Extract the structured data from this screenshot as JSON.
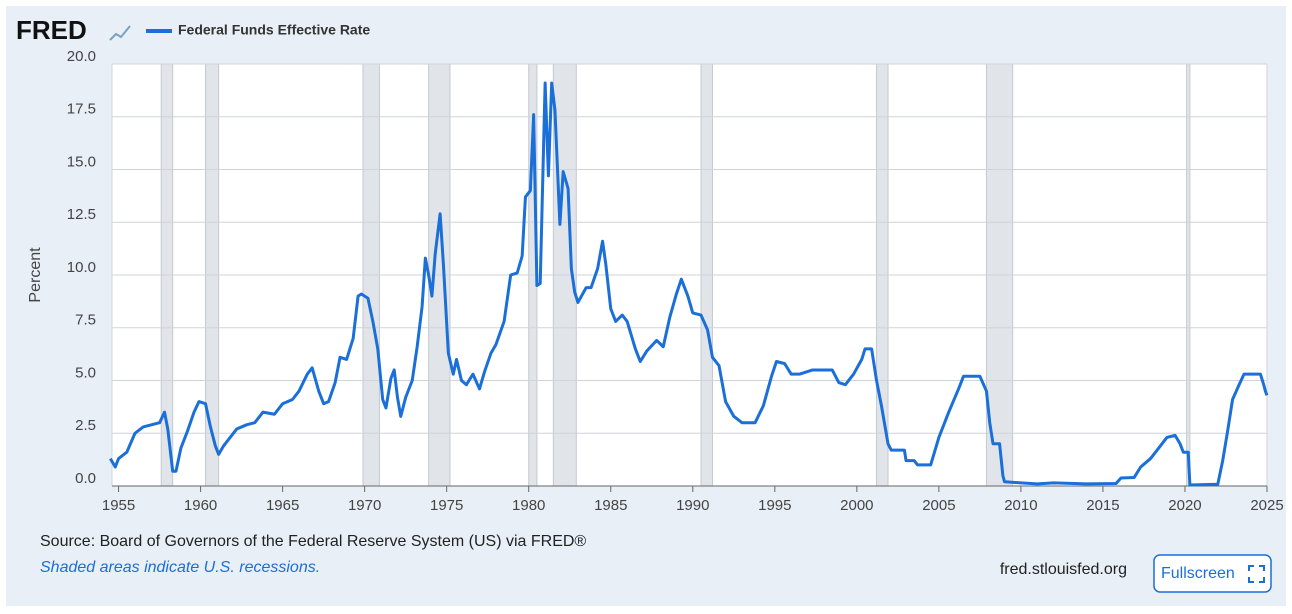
{
  "logo": "FRED",
  "chart_data": {
    "type": "line",
    "y_label": "Percent",
    "x": [
      1954.5,
      1954.8,
      1955.0,
      1955.5,
      1956.0,
      1956.5,
      1957.0,
      1957.5,
      1957.8,
      1958.0,
      1958.3,
      1958.5,
      1958.8,
      1959.2,
      1959.6,
      1959.9,
      1960.3,
      1960.6,
      1960.9,
      1961.1,
      1961.4,
      1961.8,
      1962.2,
      1962.8,
      1963.3,
      1963.8,
      1964.5,
      1965.0,
      1965.6,
      1966.0,
      1966.5,
      1966.8,
      1967.2,
      1967.5,
      1967.8,
      1968.2,
      1968.5,
      1968.9,
      1969.3,
      1969.6,
      1969.8,
      1970.2,
      1970.5,
      1970.8,
      1971.1,
      1971.3,
      1971.6,
      1971.8,
      1972.0,
      1972.2,
      1972.5,
      1972.9,
      1973.2,
      1973.5,
      1973.7,
      1973.9,
      1974.1,
      1974.3,
      1974.6,
      1974.8,
      1975.1,
      1975.4,
      1975.6,
      1975.9,
      1976.2,
      1976.6,
      1977.0,
      1977.3,
      1977.7,
      1978.0,
      1978.5,
      1978.9,
      1979.3,
      1979.6,
      1979.8,
      1980.1,
      1980.3,
      1980.5,
      1980.7,
      1980.9,
      1981.0,
      1981.2,
      1981.4,
      1981.6,
      1981.9,
      1982.1,
      1982.4,
      1982.6,
      1982.8,
      1983.0,
      1983.5,
      1983.8,
      1984.2,
      1984.5,
      1984.7,
      1985.0,
      1985.3,
      1985.7,
      1986.0,
      1986.5,
      1986.8,
      1987.2,
      1987.8,
      1988.2,
      1988.6,
      1989.0,
      1989.3,
      1989.7,
      1990.0,
      1990.5,
      1990.9,
      1991.2,
      1991.6,
      1992.0,
      1992.5,
      1993.0,
      1993.8,
      1994.3,
      1994.8,
      1995.1,
      1995.6,
      1996.0,
      1996.5,
      1997.3,
      1998.5,
      1998.9,
      1999.3,
      1999.8,
      2000.3,
      2000.5,
      2000.9,
      2001.2,
      2001.5,
      2001.9,
      2002.1,
      2002.9,
      2003.0,
      2003.5,
      2003.7,
      2004.5,
      2005.0,
      2005.6,
      2006.2,
      2006.5,
      2007.5,
      2007.9,
      2008.1,
      2008.3,
      2008.7,
      2008.9,
      2009.0,
      2010.0,
      2011.0,
      2012.0,
      2014.0,
      2015.8,
      2016.1,
      2016.9,
      2017.3,
      2017.9,
      2018.4,
      2018.9,
      2019.4,
      2019.7,
      2019.9,
      2020.2,
      2020.3,
      2022.0,
      2022.3,
      2022.6,
      2022.9,
      2023.3,
      2023.6,
      2024.6,
      2024.8,
      2024.9,
      2025.0
    ],
    "series": [
      {
        "name": "Federal Funds Effective Rate",
        "color": "#1a6fd8",
        "values": [
          1.3,
          0.9,
          1.3,
          1.6,
          2.5,
          2.8,
          2.9,
          3.0,
          3.5,
          2.7,
          0.7,
          0.7,
          1.8,
          2.6,
          3.5,
          4.0,
          3.9,
          2.8,
          1.9,
          1.5,
          1.9,
          2.3,
          2.7,
          2.9,
          3.0,
          3.5,
          3.4,
          3.9,
          4.1,
          4.5,
          5.3,
          5.6,
          4.5,
          3.9,
          4.0,
          4.9,
          6.1,
          6.0,
          7.0,
          9.0,
          9.1,
          8.9,
          7.8,
          6.5,
          4.1,
          3.7,
          5.1,
          5.5,
          4.2,
          3.3,
          4.2,
          5.0,
          6.6,
          8.5,
          10.8,
          10.0,
          9.0,
          11.0,
          12.9,
          10.5,
          6.3,
          5.3,
          6.0,
          5.0,
          4.8,
          5.3,
          4.6,
          5.4,
          6.3,
          6.7,
          7.8,
          10.0,
          10.1,
          10.9,
          13.7,
          14.0,
          17.6,
          9.5,
          9.6,
          15.9,
          19.1,
          14.7,
          19.1,
          17.8,
          12.4,
          14.9,
          14.1,
          10.3,
          9.2,
          8.7,
          9.4,
          9.4,
          10.3,
          11.6,
          10.5,
          8.4,
          7.8,
          8.1,
          7.8,
          6.5,
          5.9,
          6.4,
          6.9,
          6.6,
          8.0,
          9.1,
          9.8,
          9.0,
          8.2,
          8.1,
          7.4,
          6.1,
          5.7,
          4.0,
          3.3,
          3.0,
          3.0,
          3.8,
          5.2,
          5.9,
          5.8,
          5.3,
          5.3,
          5.5,
          5.5,
          4.9,
          4.8,
          5.3,
          6.0,
          6.5,
          6.5,
          5.0,
          3.8,
          2.0,
          1.7,
          1.7,
          1.2,
          1.2,
          1.0,
          1.0,
          2.3,
          3.5,
          4.6,
          5.2,
          5.2,
          4.5,
          3.0,
          2.0,
          2.0,
          0.5,
          0.2,
          0.15,
          0.1,
          0.15,
          0.1,
          0.12,
          0.38,
          0.4,
          0.9,
          1.3,
          1.8,
          2.3,
          2.4,
          2.0,
          1.6,
          1.6,
          0.05,
          0.08,
          1.2,
          2.6,
          4.1,
          4.8,
          5.3,
          5.3,
          4.8,
          4.5,
          4.3
        ]
      }
    ],
    "recessions": [
      [
        1957.6,
        1958.3
      ],
      [
        1960.3,
        1961.1
      ],
      [
        1969.9,
        1970.9
      ],
      [
        1973.9,
        1975.2
      ],
      [
        1980.0,
        1980.5
      ],
      [
        1981.5,
        1982.9
      ],
      [
        1990.5,
        1991.2
      ],
      [
        2001.2,
        2001.9
      ],
      [
        2007.9,
        2009.5
      ],
      [
        2020.1,
        2020.3
      ]
    ],
    "recession_color": "#e1e5ea",
    "xlim": [
      1954.6,
      2025.0
    ],
    "xticks": [
      1955,
      1960,
      1965,
      1970,
      1975,
      1980,
      1985,
      1990,
      1995,
      2000,
      2005,
      2010,
      2015,
      2020,
      2025
    ],
    "ylim": [
      0,
      20
    ],
    "yticks": [
      {
        "value": 0,
        "label": "0.0"
      },
      {
        "value": 2.5,
        "label": "2.5"
      },
      {
        "value": 5,
        "label": "5.0"
      },
      {
        "value": 7.5,
        "label": "7.5"
      },
      {
        "value": 10,
        "label": "10.0"
      },
      {
        "value": 12.5,
        "label": "12.5"
      },
      {
        "value": 15,
        "label": "15.0"
      },
      {
        "value": 17.5,
        "label": "17.5"
      },
      {
        "value": 20,
        "label": "20.0"
      }
    ],
    "grid": true
  },
  "footer": {
    "source": "Source: Board of Governors of the Federal Reserve System (US) via FRED®",
    "note": "Shaded areas indicate U.S. recessions.",
    "site": "fred.stlouisfed.org",
    "button": "Fullscreen"
  }
}
